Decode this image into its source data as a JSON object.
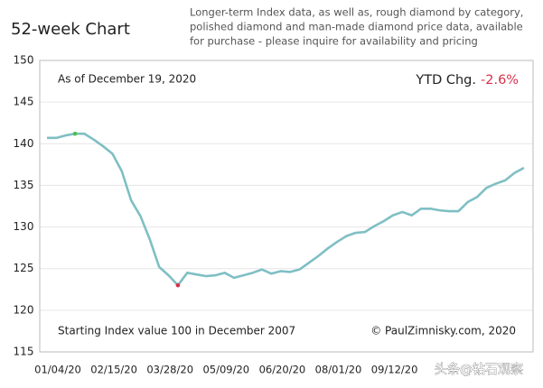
{
  "chart_data": {
    "type": "line",
    "title": "52-week Chart",
    "description": [
      "Longer-term Index data, as well as, rough diamond by category,",
      "polished diamond and man-made diamond price data, available",
      "for purchase - please inquire for availability and pricing"
    ],
    "annotations": {
      "as_of": "As of December 19, 2020",
      "start": "Starting Index value 100 in December 2007",
      "credit": "© PaulZimnisky.com, 2020"
    },
    "ytd": {
      "label": "YTD Chg.",
      "value": -2.6,
      "value_label": "-2.6%",
      "color": "#d9304a"
    },
    "watermark": "头条@钻石观察",
    "categories": [
      "01/04/20",
      null,
      null,
      null,
      null,
      null,
      "02/15/20",
      null,
      null,
      null,
      null,
      null,
      "03/28/20",
      null,
      null,
      null,
      null,
      null,
      "05/09/20",
      null,
      null,
      null,
      null,
      null,
      "06/20/20",
      null,
      null,
      null,
      null,
      null,
      "08/01/20",
      null,
      null,
      null,
      null,
      null,
      "09/12/20",
      null,
      null,
      null,
      null,
      null,
      null,
      null,
      null,
      null,
      null,
      null,
      null,
      null,
      null,
      null
    ],
    "series": [
      {
        "color": "#7fbfc4",
        "values": [
          140.7,
          140.7,
          141.0,
          141.2,
          141.2,
          140.5,
          139.7,
          138.8,
          136.7,
          133.2,
          131.3,
          128.5,
          125.2,
          124.2,
          123.0,
          124.5,
          124.3,
          124.1,
          124.2,
          124.5,
          123.9,
          124.2,
          124.5,
          124.9,
          124.4,
          124.7,
          124.6,
          124.9,
          125.7,
          126.5,
          127.4,
          128.2,
          128.9,
          129.3,
          129.4,
          130.1,
          130.7,
          131.4,
          131.8,
          131.4,
          132.2,
          132.2,
          132.0,
          131.9,
          131.9,
          133.0,
          133.6,
          134.7,
          135.2,
          135.6,
          136.5,
          137.1
        ]
      }
    ],
    "highlight": [
      {
        "index": 3,
        "color": "#4cc04c"
      },
      {
        "index": 14,
        "color": "#d9304a"
      }
    ],
    "ylim": [
      115,
      150
    ],
    "yticks": [
      115,
      120,
      125,
      130,
      135,
      140,
      145,
      150
    ],
    "grid": true
  }
}
